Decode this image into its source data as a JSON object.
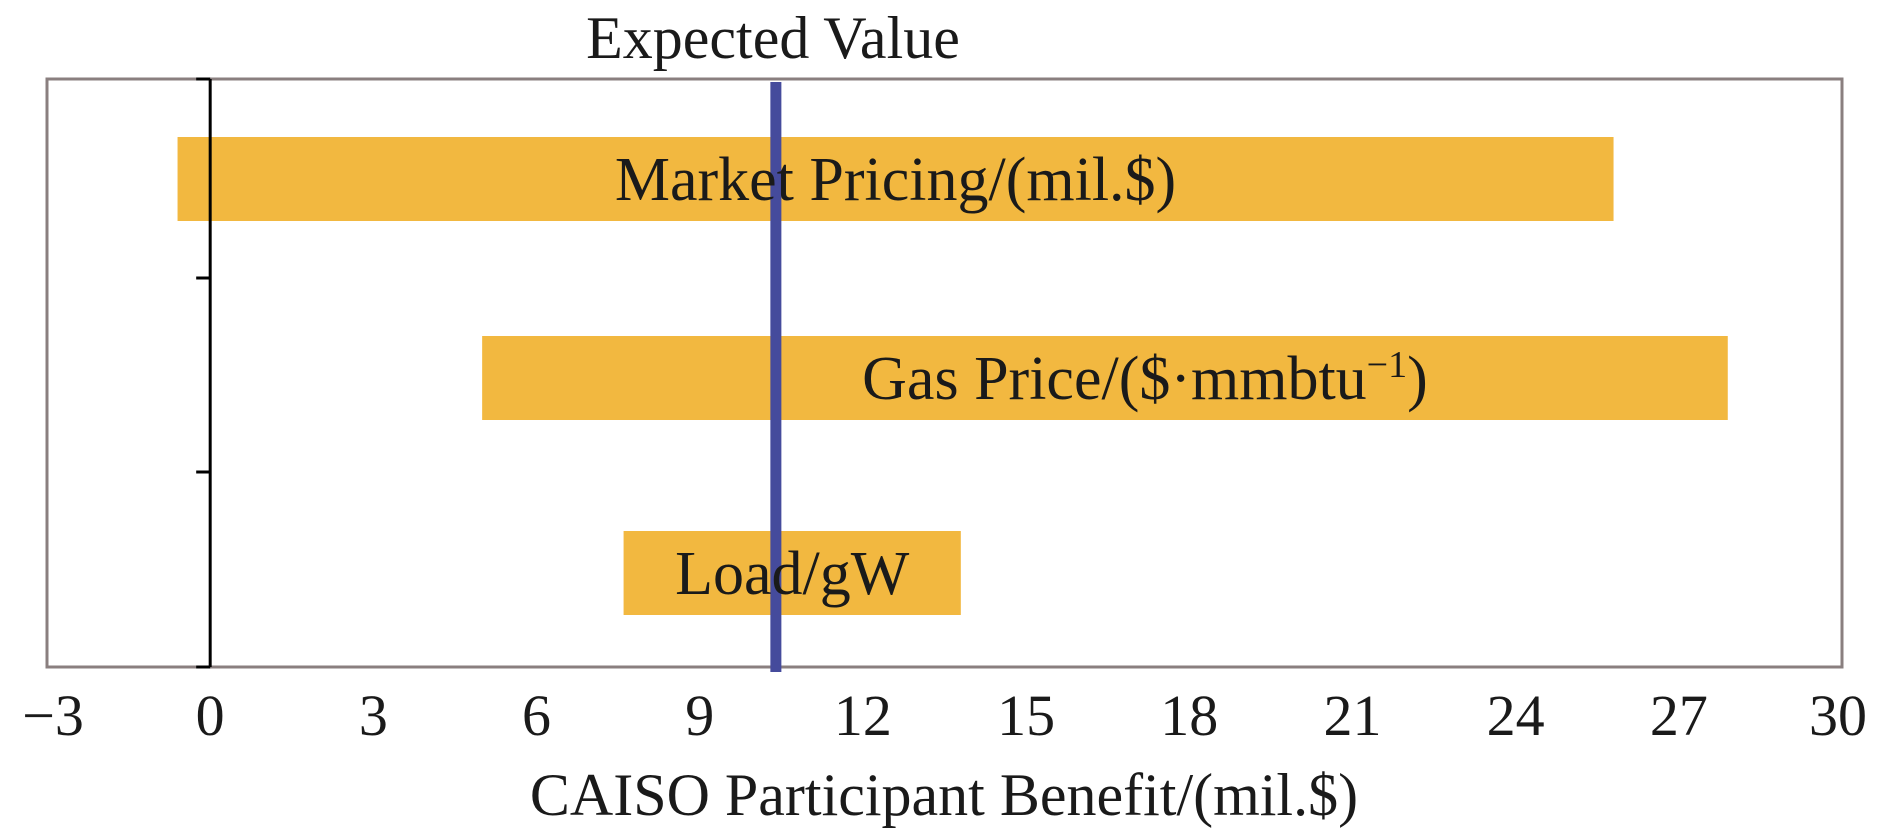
{
  "chart_data": {
    "type": "bar",
    "orientation": "horizontal",
    "xlabel": "CAISO Participant Benefit/(mil.$)",
    "xlim": [
      -3,
      30
    ],
    "xticks": [
      "−3",
      "0",
      "3",
      "6",
      "9",
      "12",
      "15",
      "18",
      "21",
      "24",
      "27",
      "30"
    ],
    "grid": false,
    "bars": [
      {
        "label": "Market Pricing/(mil.$)",
        "low": -0.6,
        "high": 25.8
      },
      {
        "label": "Gas Price/($·mmbtu",
        "label_sup": "−1",
        "label_end": ")",
        "low": 5.0,
        "high": 27.9
      },
      {
        "label": "Load/gW",
        "low": 7.6,
        "high": 13.8
      }
    ],
    "reference_line": {
      "label": "Expected Value",
      "x": 10.4
    },
    "colors": {
      "bar": "#F2B840",
      "reference_line": "#454B9C",
      "frame": "#8A7F7F",
      "axis": "#000000"
    }
  }
}
